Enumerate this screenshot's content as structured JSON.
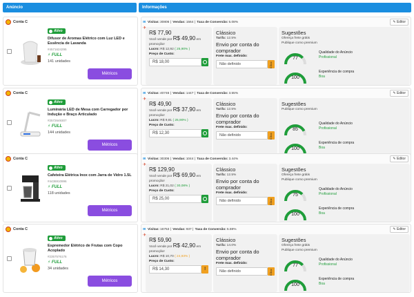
{
  "header": {
    "anuncio": "Anúncio",
    "informacoes": "Informações"
  },
  "labels": {
    "conta": "Conta C",
    "ativo": "Ativo",
    "full": "FULL",
    "metricas": "Métricos",
    "editor": "Editor",
    "visitas": "Visitas:",
    "vendas": "Vendas:",
    "taxa": "Taxa de Conversão:",
    "voce_vende_prefix": "Você vende por",
    "voce_vende_suffix": "em promoção!",
    "lucro": "Lucro:",
    "preco_custo": "Preço de Custo:",
    "classico": "Clássico",
    "tarifa": "Tarifa:",
    "envio": "Envio por conta do comprador",
    "frete_max": "Frete max. definido:",
    "nao_definido": "Não definido",
    "sugestoes": "Sugestões",
    "qualidade": "Qualidade do Anúncio",
    "experiencia": "Experiência de compra",
    "boa": "Boa"
  },
  "colors": {
    "accent": "#1a8ee0",
    "purple": "#8a4de0",
    "green": "#1f9d3a",
    "orange": "#f0a020"
  },
  "items": [
    {
      "title": "Difusor de Aromas Elétrico com Luz LED e Essência de Lavanda",
      "sku": "#4571624295",
      "units": "141 unidades",
      "visitas": "30806",
      "vendas": "1564",
      "taxa": "5.08%",
      "price": "R$ 77,90",
      "promo": "R$ 49,90",
      "lucro": "R$ 12,92",
      "lucro_pct": "( 25,90% )",
      "custo": "R$ 18,00",
      "tarifa": "12.5%",
      "sug1": "Ofereça frete grátis",
      "sug2": "Publique como premium",
      "quality_score": "77",
      "quality_level": "Profissional",
      "exp_score": "100",
      "exp_level": "Boa",
      "icon": "diffuser-icon"
    },
    {
      "title": "Luminária LED de Mesa com Carregador por Indução e Braço Articulado",
      "sku": "#2572649307",
      "units": "144 unidades",
      "visitas": "40746",
      "vendas": "1447",
      "taxa": "3.55%",
      "price": "R$ 49,90",
      "promo": "R$ 37,90",
      "lucro": "R$ 9,81",
      "lucro_pct": "( 25,90% )",
      "custo": "R$ 12,30",
      "tarifa": "12.5%",
      "sug1": "Publique como premium",
      "sug2": "",
      "quality_score": "85",
      "quality_level": "Profissional",
      "exp_score": "100",
      "exp_level": "Boa",
      "icon": "desk-lamp-icon"
    },
    {
      "title": "Cafeteira Elétrica Inox com Jarra de Vidro 1.5L",
      "sku": "#4436910996",
      "units": "118 unidades",
      "visitas": "30306",
      "vendas": "1044",
      "taxa": "3.44%",
      "price": "R$ 129,90",
      "promo": "R$ 69,90",
      "lucro": "R$ 21,02",
      "lucro_pct": "( 30,08% )",
      "custo": "R$ 25,00",
      "tarifa": "12.5%",
      "sug1": "Ofereça frete grátis",
      "sug2": "Publique como premium",
      "quality_score": "75",
      "quality_level": "Profissional",
      "exp_score": "100",
      "exp_level": "Boa",
      "icon": "coffee-maker-icon"
    },
    {
      "title": "Espremedor Elétrico de Frutas com Copo Acoplado",
      "sku": "#2357576176",
      "units": "34 unidades",
      "visitas": "16753",
      "vendas": "937",
      "taxa": "5.59%",
      "price": "R$ 59,90",
      "promo": "R$ 42,90",
      "lucro": "R$ 10,70",
      "lucro_pct": "( 24,93% )",
      "custo": "R$ 14,30",
      "tarifa": "14.0%",
      "sug1": "Ofereça frete grátis",
      "sug2": "Publique como premium",
      "quality_score": "77",
      "quality_level": "Profissional",
      "exp_score": "100",
      "exp_level": "Boa",
      "icon": "juicer-icon"
    }
  ]
}
